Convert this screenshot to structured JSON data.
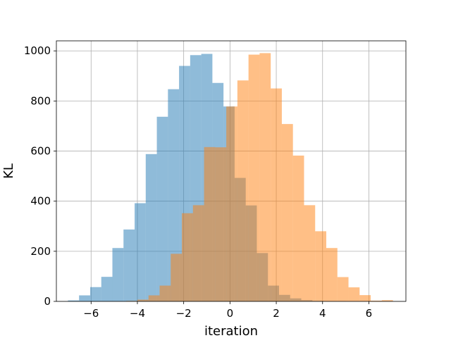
{
  "chart_data": {
    "type": "histogram",
    "title": "",
    "xlabel": "iteration",
    "ylabel": "KL",
    "xlim": [
      -7.5,
      7.6
    ],
    "ylim": [
      0,
      1040
    ],
    "xticks": [
      -6,
      -4,
      -2,
      0,
      2,
      4,
      6
    ],
    "yticks": [
      0,
      200,
      400,
      600,
      800,
      1000
    ],
    "xtick_labels": [
      "−6",
      "−4",
      "−2",
      "0",
      "2",
      "4",
      "6"
    ],
    "ytick_labels": [
      "0",
      "200",
      "400",
      "600",
      "800",
      "1000"
    ],
    "grid": true,
    "legend": "none",
    "overlap_color": "#c69c6d",
    "series": [
      {
        "color": "#1f77b4",
        "opacity": 0.5,
        "bin_edges": [
          -7.0,
          -6.52,
          -6.04,
          -5.56,
          -5.08,
          -4.6,
          -4.12,
          -3.64,
          -3.16,
          -2.68,
          -2.2,
          -1.72,
          -1.24,
          -0.76,
          -0.28,
          0.2,
          0.68,
          1.16,
          1.64,
          2.12,
          2.6,
          3.08,
          3.56,
          4.04,
          4.52,
          5.0
        ],
        "values": [
          4,
          24,
          57,
          98,
          213,
          287,
          392,
          588,
          737,
          847,
          940,
          983,
          988,
          872,
          778,
          493,
          383,
          193,
          63,
          26,
          12,
          5,
          2,
          1,
          1
        ]
      },
      {
        "color": "#ff7f0e",
        "opacity": 0.5,
        "bin_edges": [
          -4.48,
          -4.0,
          -3.52,
          -3.04,
          -2.56,
          -2.08,
          -1.6,
          -1.12,
          -0.64,
          -0.16,
          0.32,
          0.8,
          1.28,
          1.76,
          2.24,
          2.72,
          3.2,
          3.68,
          4.16,
          4.64,
          5.12,
          5.6,
          6.08,
          6.56,
          7.04
        ],
        "values": [
          2,
          7,
          24,
          63,
          190,
          352,
          384,
          616,
          615,
          778,
          882,
          985,
          991,
          850,
          708,
          582,
          384,
          280,
          213,
          97,
          56,
          25,
          3,
          5
        ]
      }
    ]
  }
}
